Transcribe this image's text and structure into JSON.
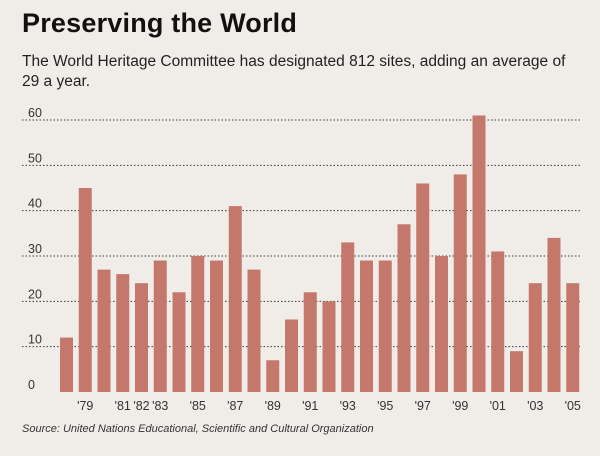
{
  "header": {
    "title": "Preserving the World",
    "subtitle": "The World Heritage Committee has designated 812 sites, adding an average of 29 a year."
  },
  "source": "Source: United Nations Educational, Scientific and Cultural Organization",
  "colors": {
    "bar": "#c4776b",
    "grid": "#3a3a3a",
    "background": "#f0ede8"
  },
  "chart_data": {
    "type": "bar",
    "title": "",
    "xlabel": "",
    "ylabel": "",
    "ylim": [
      0,
      60
    ],
    "yticks": [
      0,
      10,
      20,
      30,
      40,
      50,
      60
    ],
    "grid": true,
    "categories": [
      "1978",
      "1979",
      "1980",
      "1981",
      "1982",
      "1983",
      "1984",
      "1985",
      "1986",
      "1987",
      "1988",
      "1989",
      "1990",
      "1991",
      "1992",
      "1993",
      "1994",
      "1995",
      "1996",
      "1997",
      "1998",
      "1999",
      "2000",
      "2001",
      "2002",
      "2003",
      "2004",
      "2005"
    ],
    "tick_labels": [
      "'79",
      "'81",
      "'82",
      "'83",
      "'85",
      "'87",
      "'89",
      "'91",
      "'93",
      "'95",
      "'97",
      "'99",
      "'01",
      "'03",
      "'05"
    ],
    "values": [
      12,
      45,
      27,
      26,
      24,
      29,
      22,
      30,
      29,
      41,
      27,
      7,
      16,
      22,
      20,
      33,
      29,
      29,
      37,
      46,
      30,
      48,
      61,
      31,
      9,
      24,
      34,
      24
    ]
  }
}
